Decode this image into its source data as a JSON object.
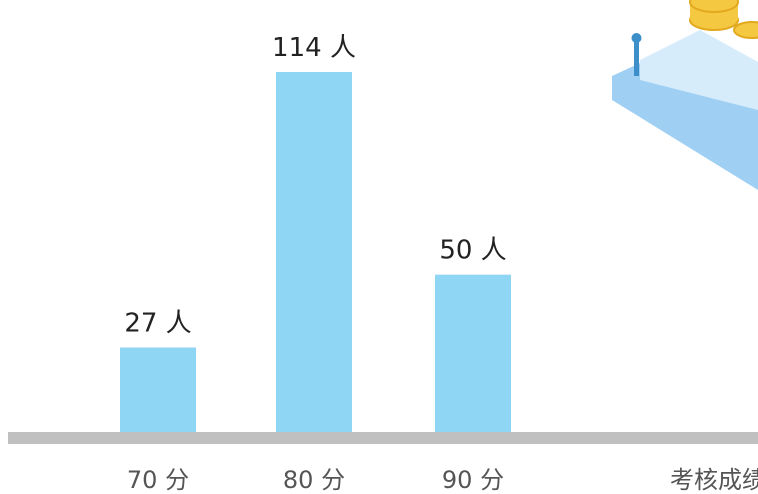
{
  "chart_data": {
    "type": "bar",
    "categories": [
      "70 分",
      "80 分",
      "90 分"
    ],
    "values": [
      27,
      114,
      50
    ],
    "data_labels": [
      "27 人",
      "114 人",
      "50 人"
    ],
    "xlabel": "考核成绩",
    "ylabel": "",
    "title": "",
    "ylim": [
      0,
      120
    ],
    "grid": false,
    "colors": {
      "bar": "#8fd6f5",
      "axis": "#c0c0c0",
      "label": "#222222",
      "tick": "#555555"
    }
  },
  "decoration": {
    "icon": "isometric-coins-stairs-illustration-icon",
    "colors": {
      "step_top": "#d6ecfb",
      "step_side": "#9fd0f3",
      "coin": "#f5c842",
      "coin_edge": "#e2a91f",
      "pole": "#3d8fc9"
    }
  }
}
